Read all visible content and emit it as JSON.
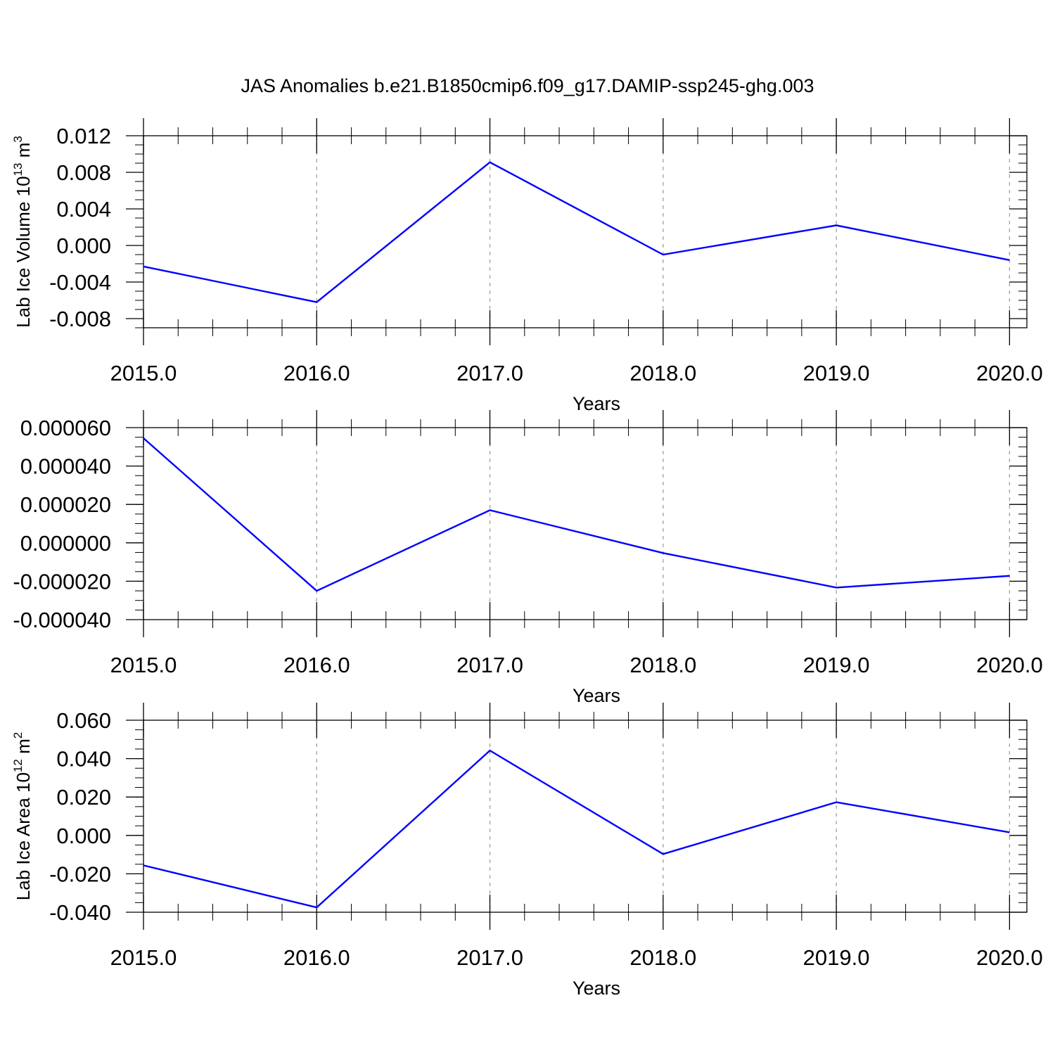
{
  "figure": {
    "title": "JAS Anomalies b.e21.B1850cmip6.f09_g17.DAMIP-ssp245-ghg.003",
    "line_color": "#0000ff",
    "grid_color": "#a0a0a0"
  },
  "chart_data": [
    {
      "type": "line",
      "ylabel": "Lab Ice Volume 10",
      "ylabel_sup": "13",
      "ylabel_unit": " m",
      "ylabel_unit_sup": "3",
      "xlabel": "Years",
      "x": [
        2015,
        2016,
        2017,
        2018,
        2019,
        2020
      ],
      "y": [
        -0.0023,
        -0.0062,
        0.0091,
        -0.001,
        0.0022,
        -0.0016
      ],
      "xlim": [
        2015,
        2020.1
      ],
      "ylim": [
        -0.009,
        0.012
      ],
      "xticks": [
        2015,
        2016,
        2017,
        2018,
        2019,
        2020
      ],
      "xtick_labels": [
        "2015.0",
        "2016.0",
        "2017.0",
        "2018.0",
        "2019.0",
        "2020.0"
      ],
      "yticks": [
        -0.008,
        -0.004,
        0.0,
        0.004,
        0.008,
        0.012
      ],
      "ytick_labels": [
        "-0.008",
        "-0.004",
        "0.000",
        "0.004",
        "0.008",
        "0.012"
      ],
      "yminor_step": 0.001,
      "xgrid": true
    },
    {
      "type": "line",
      "ylabel": "",
      "ylabel_sup": "",
      "ylabel_unit": "",
      "ylabel_unit_sup": "",
      "xlabel": "Years",
      "x": [
        2015,
        2016,
        2017,
        2018,
        2019,
        2020
      ],
      "y": [
        5.45e-05,
        -2.5e-05,
        1.7e-05,
        -5.3e-06,
        -2.33e-05,
        -1.72e-05
      ],
      "xlim": [
        2015,
        2020.1
      ],
      "ylim": [
        -4e-05,
        6e-05
      ],
      "xticks": [
        2015,
        2016,
        2017,
        2018,
        2019,
        2020
      ],
      "xtick_labels": [
        "2015.0",
        "2016.0",
        "2017.0",
        "2018.0",
        "2019.0",
        "2020.0"
      ],
      "yticks": [
        -4e-05,
        -2e-05,
        0.0,
        2e-05,
        4e-05,
        6e-05
      ],
      "ytick_labels": [
        "-0.000040",
        "-0.000020",
        "0.000000",
        "0.000020",
        "0.000040",
        "0.000060"
      ],
      "yminor_step": 5e-06,
      "xgrid": true
    },
    {
      "type": "line",
      "ylabel": "Lab Ice Area 10",
      "ylabel_sup": "12",
      "ylabel_unit": " m",
      "ylabel_unit_sup": "2",
      "xlabel": "Years",
      "x": [
        2015,
        2016,
        2017,
        2018,
        2019,
        2020
      ],
      "y": [
        -0.0156,
        -0.0375,
        0.0442,
        -0.0097,
        0.0173,
        0.0016
      ],
      "xlim": [
        2015,
        2020.1
      ],
      "ylim": [
        -0.04,
        0.06
      ],
      "xticks": [
        2015,
        2016,
        2017,
        2018,
        2019,
        2020
      ],
      "xtick_labels": [
        "2015.0",
        "2016.0",
        "2017.0",
        "2018.0",
        "2019.0",
        "2020.0"
      ],
      "yticks": [
        -0.04,
        -0.02,
        0.0,
        0.02,
        0.04,
        0.06
      ],
      "ytick_labels": [
        "-0.040",
        "-0.020",
        "0.000",
        "0.020",
        "0.040",
        "0.060"
      ],
      "yminor_step": 0.005,
      "xgrid": true
    }
  ]
}
